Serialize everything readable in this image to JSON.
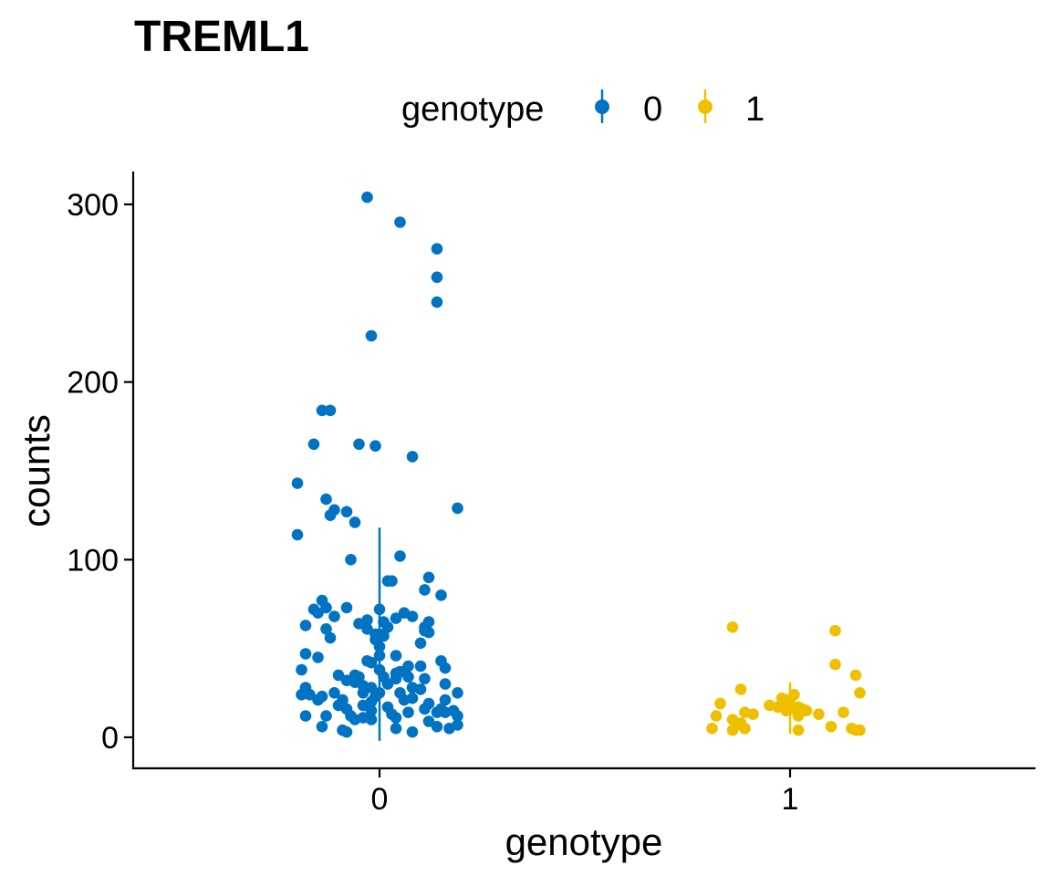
{
  "chart_data": {
    "type": "scatter",
    "title": "TREML1",
    "xlabel": "genotype",
    "ylabel": "counts",
    "legend": {
      "title": "genotype",
      "position": "top",
      "items": [
        {
          "label": "0",
          "color": "#0073C2"
        },
        {
          "label": "1",
          "color": "#EFC000"
        }
      ]
    },
    "categories": [
      "0",
      "1"
    ],
    "xlim": [
      -0.6,
      1.6
    ],
    "ylim": [
      0,
      320
    ],
    "yticks": [
      0,
      100,
      200,
      300
    ],
    "ytick_labels": [
      "0",
      "100",
      "200",
      "300"
    ],
    "xtick_labels": [
      "0",
      "1"
    ],
    "grid": false,
    "series": [
      {
        "name": "0",
        "color": "#0073C2",
        "summary": {
          "center": 0,
          "low": -2,
          "high": 118
        },
        "points": [
          {
            "x": -0.03,
            "y": 304
          },
          {
            "x": 0.05,
            "y": 290
          },
          {
            "x": 0.14,
            "y": 275
          },
          {
            "x": 0.14,
            "y": 259
          },
          {
            "x": 0.14,
            "y": 245
          },
          {
            "x": -0.02,
            "y": 226
          },
          {
            "x": -0.14,
            "y": 184
          },
          {
            "x": -0.12,
            "y": 184
          },
          {
            "x": -0.16,
            "y": 165
          },
          {
            "x": -0.05,
            "y": 165
          },
          {
            "x": -0.01,
            "y": 164
          },
          {
            "x": 0.08,
            "y": 158
          },
          {
            "x": -0.2,
            "y": 143
          },
          {
            "x": -0.13,
            "y": 134
          },
          {
            "x": 0.19,
            "y": 129
          },
          {
            "x": -0.11,
            "y": 128
          },
          {
            "x": -0.08,
            "y": 127
          },
          {
            "x": -0.12,
            "y": 125
          },
          {
            "x": -0.06,
            "y": 121
          },
          {
            "x": -0.2,
            "y": 114
          },
          {
            "x": 0.05,
            "y": 102
          },
          {
            "x": -0.07,
            "y": 100
          },
          {
            "x": 0.12,
            "y": 90
          },
          {
            "x": 0.03,
            "y": 88
          },
          {
            "x": 0.02,
            "y": 88
          },
          {
            "x": 0.11,
            "y": 83
          },
          {
            "x": 0.15,
            "y": 80
          },
          {
            "x": -0.14,
            "y": 77
          },
          {
            "x": -0.13,
            "y": 73
          },
          {
            "x": -0.08,
            "y": 73
          },
          {
            "x": -0.16,
            "y": 72
          },
          {
            "x": 0.0,
            "y": 72
          },
          {
            "x": -0.15,
            "y": 70
          },
          {
            "x": 0.06,
            "y": 70
          },
          {
            "x": 0.08,
            "y": 68
          },
          {
            "x": -0.11,
            "y": 68
          },
          {
            "x": 0.04,
            "y": 67
          },
          {
            "x": -0.03,
            "y": 66
          },
          {
            "x": 0.12,
            "y": 65
          },
          {
            "x": 0.01,
            "y": 65
          },
          {
            "x": -0.05,
            "y": 64
          },
          {
            "x": -0.18,
            "y": 63
          },
          {
            "x": 0.11,
            "y": 62
          },
          {
            "x": 0.02,
            "y": 62
          },
          {
            "x": -0.13,
            "y": 61
          },
          {
            "x": -0.03,
            "y": 61
          },
          {
            "x": 0.11,
            "y": 60
          },
          {
            "x": 0.12,
            "y": 59
          },
          {
            "x": -0.01,
            "y": 58
          },
          {
            "x": 0.0,
            "y": 58
          },
          {
            "x": 0.01,
            "y": 57
          },
          {
            "x": -0.12,
            "y": 56
          },
          {
            "x": -0.01,
            "y": 55
          },
          {
            "x": 0.1,
            "y": 53
          },
          {
            "x": 0.0,
            "y": 51
          },
          {
            "x": -0.18,
            "y": 47
          },
          {
            "x": 0.04,
            "y": 46
          },
          {
            "x": 0.0,
            "y": 46
          },
          {
            "x": -0.15,
            "y": 45
          },
          {
            "x": 0.15,
            "y": 43
          },
          {
            "x": -0.03,
            "y": 43
          },
          {
            "x": -0.02,
            "y": 42
          },
          {
            "x": 0.07,
            "y": 40
          },
          {
            "x": 0.1,
            "y": 40
          },
          {
            "x": 0.16,
            "y": 39
          },
          {
            "x": 0.0,
            "y": 38
          },
          {
            "x": 0.05,
            "y": 37
          },
          {
            "x": -0.19,
            "y": 38
          },
          {
            "x": 0.04,
            "y": 36
          },
          {
            "x": -0.1,
            "y": 35
          },
          {
            "x": -0.06,
            "y": 35
          },
          {
            "x": -0.05,
            "y": 34
          },
          {
            "x": 0.07,
            "y": 34
          },
          {
            "x": 0.01,
            "y": 34
          },
          {
            "x": 0.04,
            "y": 33
          },
          {
            "x": 0.11,
            "y": 33
          },
          {
            "x": -0.08,
            "y": 32
          },
          {
            "x": -0.06,
            "y": 31
          },
          {
            "x": 0.02,
            "y": 30
          },
          {
            "x": -0.04,
            "y": 29
          },
          {
            "x": 0.16,
            "y": 30
          },
          {
            "x": -0.02,
            "y": 28
          },
          {
            "x": 0.08,
            "y": 28
          },
          {
            "x": -0.18,
            "y": 28
          },
          {
            "x": 0.1,
            "y": 27
          },
          {
            "x": -0.11,
            "y": 25
          },
          {
            "x": -0.04,
            "y": 25
          },
          {
            "x": 0.19,
            "y": 25
          },
          {
            "x": 0.0,
            "y": 25
          },
          {
            "x": 0.05,
            "y": 25
          },
          {
            "x": -0.19,
            "y": 24
          },
          {
            "x": -0.17,
            "y": 24
          },
          {
            "x": -0.14,
            "y": 23
          },
          {
            "x": -0.01,
            "y": 23
          },
          {
            "x": 0.08,
            "y": 22
          },
          {
            "x": 0.06,
            "y": 21
          },
          {
            "x": -0.09,
            "y": 21
          },
          {
            "x": -0.15,
            "y": 21
          },
          {
            "x": 0.16,
            "y": 21
          },
          {
            "x": -0.02,
            "y": 20
          },
          {
            "x": 0.12,
            "y": 19
          },
          {
            "x": -0.04,
            "y": 18
          },
          {
            "x": -0.1,
            "y": 18
          },
          {
            "x": 0.02,
            "y": 17
          },
          {
            "x": 0.11,
            "y": 16
          },
          {
            "x": -0.08,
            "y": 16
          },
          {
            "x": 0.15,
            "y": 16
          },
          {
            "x": -0.02,
            "y": 15
          },
          {
            "x": 0.18,
            "y": 15
          },
          {
            "x": 0.07,
            "y": 14
          },
          {
            "x": 0.14,
            "y": 14
          },
          {
            "x": 0.16,
            "y": 14
          },
          {
            "x": 0.03,
            "y": 13
          },
          {
            "x": -0.13,
            "y": 12
          },
          {
            "x": 0.19,
            "y": 12
          },
          {
            "x": -0.18,
            "y": 12
          },
          {
            "x": -0.07,
            "y": 12
          },
          {
            "x": 0.04,
            "y": 11
          },
          {
            "x": -0.04,
            "y": 11
          },
          {
            "x": -0.06,
            "y": 10
          },
          {
            "x": 0.12,
            "y": 9
          },
          {
            "x": -0.02,
            "y": 10
          },
          {
            "x": 0.19,
            "y": 7
          },
          {
            "x": 0.14,
            "y": 6
          },
          {
            "x": -0.14,
            "y": 6
          },
          {
            "x": 0.17,
            "y": 5
          },
          {
            "x": 0.04,
            "y": 5
          },
          {
            "x": -0.09,
            "y": 4
          },
          {
            "x": -0.08,
            "y": 3
          },
          {
            "x": 0.08,
            "y": 3
          }
        ]
      },
      {
        "name": "1",
        "color": "#EFC000",
        "summary": {
          "center": 1,
          "low": 2,
          "high": 31
        },
        "points": [
          {
            "x": 0.86,
            "y": 62
          },
          {
            "x": 1.11,
            "y": 60
          },
          {
            "x": 1.11,
            "y": 41
          },
          {
            "x": 1.16,
            "y": 35
          },
          {
            "x": 0.88,
            "y": 27
          },
          {
            "x": 1.17,
            "y": 25
          },
          {
            "x": 1.01,
            "y": 24
          },
          {
            "x": 0.98,
            "y": 22
          },
          {
            "x": 0.99,
            "y": 21
          },
          {
            "x": 0.83,
            "y": 19
          },
          {
            "x": 1.0,
            "y": 19
          },
          {
            "x": 0.95,
            "y": 18
          },
          {
            "x": 0.97,
            "y": 17
          },
          {
            "x": 1.02,
            "y": 17
          },
          {
            "x": 1.0,
            "y": 16
          },
          {
            "x": 1.03,
            "y": 16
          },
          {
            "x": 1.04,
            "y": 15
          },
          {
            "x": 0.99,
            "y": 15
          },
          {
            "x": 0.89,
            "y": 14
          },
          {
            "x": 1.13,
            "y": 14
          },
          {
            "x": 0.91,
            "y": 13
          },
          {
            "x": 1.07,
            "y": 13
          },
          {
            "x": 1.02,
            "y": 12
          },
          {
            "x": 0.82,
            "y": 12
          },
          {
            "x": 0.86,
            "y": 10
          },
          {
            "x": 0.88,
            "y": 8
          },
          {
            "x": 0.87,
            "y": 7
          },
          {
            "x": 1.1,
            "y": 6
          },
          {
            "x": 1.15,
            "y": 5
          },
          {
            "x": 0.89,
            "y": 5
          },
          {
            "x": 0.81,
            "y": 5
          },
          {
            "x": 1.02,
            "y": 4
          },
          {
            "x": 1.16,
            "y": 4
          },
          {
            "x": 0.86,
            "y": 4
          },
          {
            "x": 1.17,
            "y": 4
          }
        ]
      }
    ]
  }
}
